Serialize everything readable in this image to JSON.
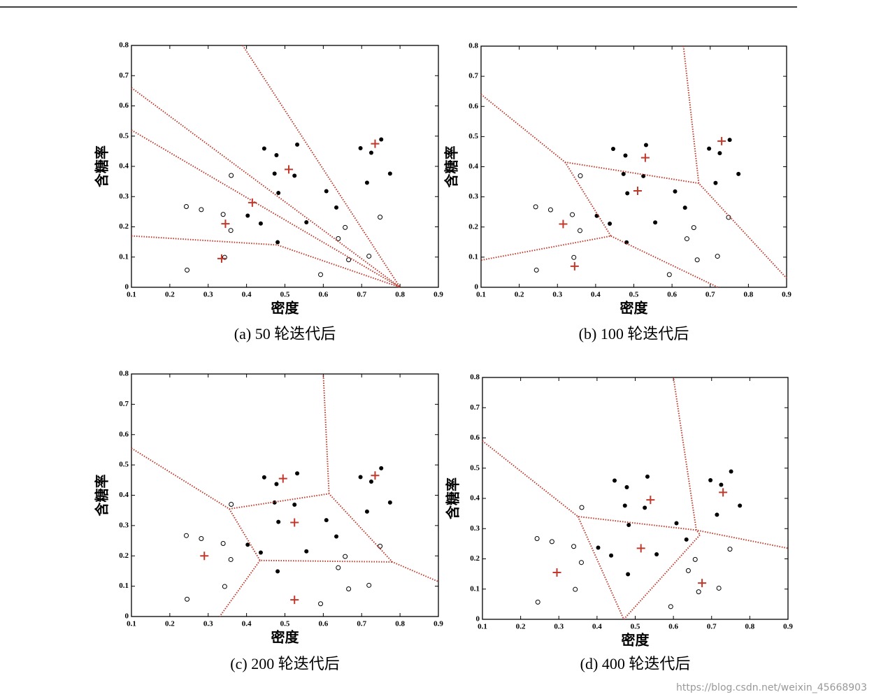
{
  "chart_data": [
    {
      "type": "scatter",
      "title": "(a) 50 轮迭代后",
      "xlabel": "密度",
      "ylabel": "含糖率",
      "xlim": [
        0.1,
        0.9
      ],
      "ylim": [
        0,
        0.8
      ],
      "xticks": [
        0.1,
        0.2,
        0.3,
        0.4,
        0.5,
        0.6,
        0.7,
        0.8,
        0.9
      ],
      "yticks": [
        0,
        0.1,
        0.2,
        0.3,
        0.4,
        0.5,
        0.6,
        0.7,
        0.8
      ],
      "series": [
        {
          "marker": "filled",
          "color": "#000000",
          "x": [
            0.697,
            0.774,
            0.634,
            0.608,
            0.556,
            0.403,
            0.481,
            0.437,
            0.714,
            0.483,
            0.478,
            0.525,
            0.751,
            0.532,
            0.473,
            0.725,
            0.446
          ],
          "values": [
            0.46,
            0.376,
            0.264,
            0.318,
            0.215,
            0.237,
            0.149,
            0.211,
            0.346,
            0.312,
            0.437,
            0.369,
            0.489,
            0.472,
            0.376,
            0.445,
            0.459
          ]
        },
        {
          "marker": "open",
          "color": "#000000",
          "x": [
            0.666,
            0.243,
            0.245,
            0.343,
            0.639,
            0.657,
            0.36,
            0.593,
            0.719,
            0.359,
            0.339,
            0.282,
            0.748
          ],
          "values": [
            0.091,
            0.267,
            0.057,
            0.099,
            0.161,
            0.198,
            0.37,
            0.042,
            0.103,
            0.188,
            0.241,
            0.257,
            0.232
          ]
        },
        {
          "marker": "cross",
          "color": "#c0392b",
          "x": [
            0.51,
            0.735,
            0.415,
            0.345,
            0.335
          ],
          "values": [
            0.39,
            0.475,
            0.28,
            0.21,
            0.095
          ]
        },
        {
          "marker": "dotted-line",
          "color": "#c0392b",
          "x": [
            0.1,
            0.8,
            null,
            0.1,
            0.8,
            null,
            0.1,
            0.48,
            0.8,
            null,
            0.39,
            0.8
          ],
          "values": [
            0.66,
            0,
            null,
            0.52,
            0,
            null,
            0.17,
            0.14,
            0,
            null,
            0.8,
            0
          ]
        }
      ]
    },
    {
      "type": "scatter",
      "title": "(b) 100 轮迭代后",
      "xlabel": "密度",
      "ylabel": "含糖率",
      "xlim": [
        0.1,
        0.9
      ],
      "ylim": [
        0,
        0.8
      ],
      "xticks": [
        0.1,
        0.2,
        0.3,
        0.4,
        0.5,
        0.6,
        0.7,
        0.8,
        0.9
      ],
      "yticks": [
        0,
        0.1,
        0.2,
        0.3,
        0.4,
        0.5,
        0.6,
        0.7,
        0.8
      ],
      "series": [
        {
          "marker": "filled",
          "color": "#000000",
          "x": [
            0.697,
            0.774,
            0.634,
            0.608,
            0.556,
            0.403,
            0.481,
            0.437,
            0.714,
            0.483,
            0.478,
            0.525,
            0.751,
            0.532,
            0.473,
            0.725,
            0.446
          ],
          "values": [
            0.46,
            0.376,
            0.264,
            0.318,
            0.215,
            0.237,
            0.149,
            0.211,
            0.346,
            0.312,
            0.437,
            0.369,
            0.489,
            0.472,
            0.376,
            0.445,
            0.459
          ]
        },
        {
          "marker": "open",
          "color": "#000000",
          "x": [
            0.666,
            0.243,
            0.245,
            0.343,
            0.639,
            0.657,
            0.36,
            0.593,
            0.719,
            0.359,
            0.339,
            0.282,
            0.748
          ],
          "values": [
            0.091,
            0.267,
            0.057,
            0.099,
            0.161,
            0.198,
            0.37,
            0.042,
            0.103,
            0.188,
            0.241,
            0.257,
            0.232
          ]
        },
        {
          "marker": "cross",
          "color": "#c0392b",
          "x": [
            0.53,
            0.73,
            0.51,
            0.315,
            0.345
          ],
          "values": [
            0.43,
            0.485,
            0.32,
            0.21,
            0.07
          ]
        },
        {
          "marker": "dotted-line",
          "color": "#c0392b",
          "x": [
            0.1,
            0.32,
            0.67,
            0.9,
            null,
            0.32,
            0.44,
            0.1,
            null,
            0.44,
            0.72,
            null,
            0.67,
            0.63
          ],
          "values": [
            0.64,
            0.415,
            0.345,
            0.03,
            null,
            0.415,
            0.17,
            0.09,
            null,
            0.17,
            0,
            null,
            0.345,
            0.8
          ]
        }
      ]
    },
    {
      "type": "scatter",
      "title": "(c) 200 轮迭代后",
      "xlabel": "密度",
      "ylabel": "含糖率",
      "xlim": [
        0.1,
        0.9
      ],
      "ylim": [
        0,
        0.8
      ],
      "xticks": [
        0.1,
        0.2,
        0.3,
        0.4,
        0.5,
        0.6,
        0.7,
        0.8,
        0.9
      ],
      "yticks": [
        0,
        0.1,
        0.2,
        0.3,
        0.4,
        0.5,
        0.6,
        0.7,
        0.8
      ],
      "series": [
        {
          "marker": "filled",
          "color": "#000000",
          "x": [
            0.697,
            0.774,
            0.634,
            0.608,
            0.556,
            0.403,
            0.481,
            0.437,
            0.714,
            0.483,
            0.478,
            0.525,
            0.751,
            0.532,
            0.473,
            0.725,
            0.446
          ],
          "values": [
            0.46,
            0.376,
            0.264,
            0.318,
            0.215,
            0.237,
            0.149,
            0.211,
            0.346,
            0.312,
            0.437,
            0.369,
            0.489,
            0.472,
            0.376,
            0.445,
            0.459
          ]
        },
        {
          "marker": "open",
          "color": "#000000",
          "x": [
            0.666,
            0.243,
            0.245,
            0.343,
            0.639,
            0.657,
            0.36,
            0.593,
            0.719,
            0.359,
            0.339,
            0.282,
            0.748
          ],
          "values": [
            0.091,
            0.267,
            0.057,
            0.099,
            0.161,
            0.198,
            0.37,
            0.042,
            0.103,
            0.188,
            0.241,
            0.257,
            0.232
          ]
        },
        {
          "marker": "cross",
          "color": "#c0392b",
          "x": [
            0.495,
            0.735,
            0.525,
            0.29,
            0.525
          ],
          "values": [
            0.455,
            0.465,
            0.31,
            0.2,
            0.055
          ]
        },
        {
          "marker": "dotted-line",
          "color": "#c0392b",
          "x": [
            0.1,
            0.355,
            0.615,
            0.78,
            0.9,
            null,
            0.355,
            0.435,
            0.78,
            null,
            0.435,
            0.33,
            null,
            0.615,
            0.6
          ],
          "values": [
            0.555,
            0.355,
            0.405,
            0.18,
            0.115,
            null,
            0.355,
            0.185,
            0.18,
            null,
            0.185,
            0,
            null,
            0.405,
            0.8
          ]
        }
      ]
    },
    {
      "type": "scatter",
      "title": "(d) 400 轮迭代后",
      "xlabel": "密度",
      "ylabel": "含糖率",
      "xlim": [
        0.1,
        0.9
      ],
      "ylim": [
        0,
        0.8
      ],
      "xticks": [
        0.1,
        0.2,
        0.3,
        0.4,
        0.5,
        0.6,
        0.7,
        0.8,
        0.9
      ],
      "yticks": [
        0,
        0.1,
        0.2,
        0.3,
        0.4,
        0.5,
        0.6,
        0.7,
        0.8
      ],
      "series": [
        {
          "marker": "filled",
          "color": "#000000",
          "x": [
            0.697,
            0.774,
            0.634,
            0.608,
            0.556,
            0.403,
            0.481,
            0.437,
            0.714,
            0.483,
            0.478,
            0.525,
            0.751,
            0.532,
            0.473,
            0.725,
            0.446
          ],
          "values": [
            0.46,
            0.376,
            0.264,
            0.318,
            0.215,
            0.237,
            0.149,
            0.211,
            0.346,
            0.312,
            0.437,
            0.369,
            0.489,
            0.472,
            0.376,
            0.445,
            0.459
          ]
        },
        {
          "marker": "open",
          "color": "#000000",
          "x": [
            0.666,
            0.243,
            0.245,
            0.343,
            0.639,
            0.657,
            0.36,
            0.593,
            0.719,
            0.359,
            0.339,
            0.282,
            0.748
          ],
          "values": [
            0.091,
            0.267,
            0.057,
            0.099,
            0.161,
            0.198,
            0.37,
            0.042,
            0.103,
            0.188,
            0.241,
            0.257,
            0.232
          ]
        },
        {
          "marker": "cross",
          "color": "#c0392b",
          "x": [
            0.54,
            0.73,
            0.515,
            0.295,
            0.675
          ],
          "values": [
            0.395,
            0.42,
            0.235,
            0.155,
            0.12
          ]
        },
        {
          "marker": "dotted-line",
          "color": "#c0392b",
          "x": [
            0.1,
            0.35,
            0.66,
            0.9,
            null,
            0.35,
            0.47,
            0.67,
            0.66,
            null,
            0.66,
            0.6
          ],
          "values": [
            0.59,
            0.34,
            0.295,
            0.235,
            null,
            0.34,
            0,
            0.28,
            0.295,
            null,
            0.295,
            0.8
          ]
        }
      ]
    }
  ],
  "watermark": "https://blog.csdn.net/weixin_45668903"
}
